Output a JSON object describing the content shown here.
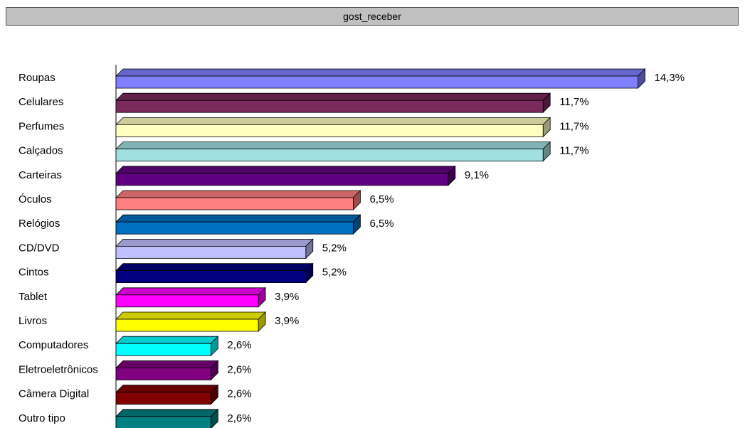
{
  "title": "gost_receber",
  "chart_data": {
    "type": "bar",
    "orientation": "horizontal",
    "style": "3d",
    "title": "gost_receber",
    "categories": [
      "Roupas",
      "Celulares",
      "Perfumes",
      "Calçados",
      "Carteiras",
      "Óculos",
      "Relógios",
      "CD/DVD",
      "Cintos",
      "Tablet",
      "Livros",
      "Computadores",
      "Eletroeletrônicos",
      "Câmera Digital",
      "Outro tipo"
    ],
    "values": [
      14.3,
      11.7,
      11.7,
      11.7,
      9.1,
      6.5,
      6.5,
      5.2,
      5.2,
      3.9,
      3.9,
      2.6,
      2.6,
      2.6,
      2.6
    ],
    "data_labels": [
      "14,3%",
      "11,7%",
      "11,7%",
      "11,7%",
      "9,1%",
      "6,5%",
      "6,5%",
      "5,2%",
      "5,2%",
      "3,9%",
      "3,9%",
      "2,6%",
      "2,6%",
      "2,6%",
      "2,6%"
    ],
    "colors": [
      "#8080ff",
      "#7a2a5c",
      "#ffffc0",
      "#a0e0e0",
      "#600080",
      "#ff8080",
      "#0070c0",
      "#c0c0ff",
      "#000080",
      "#ff00ff",
      "#ffff00",
      "#00ffff",
      "#800080",
      "#800000",
      "#008080"
    ],
    "unit": "%",
    "grid": false,
    "legend": "none"
  }
}
